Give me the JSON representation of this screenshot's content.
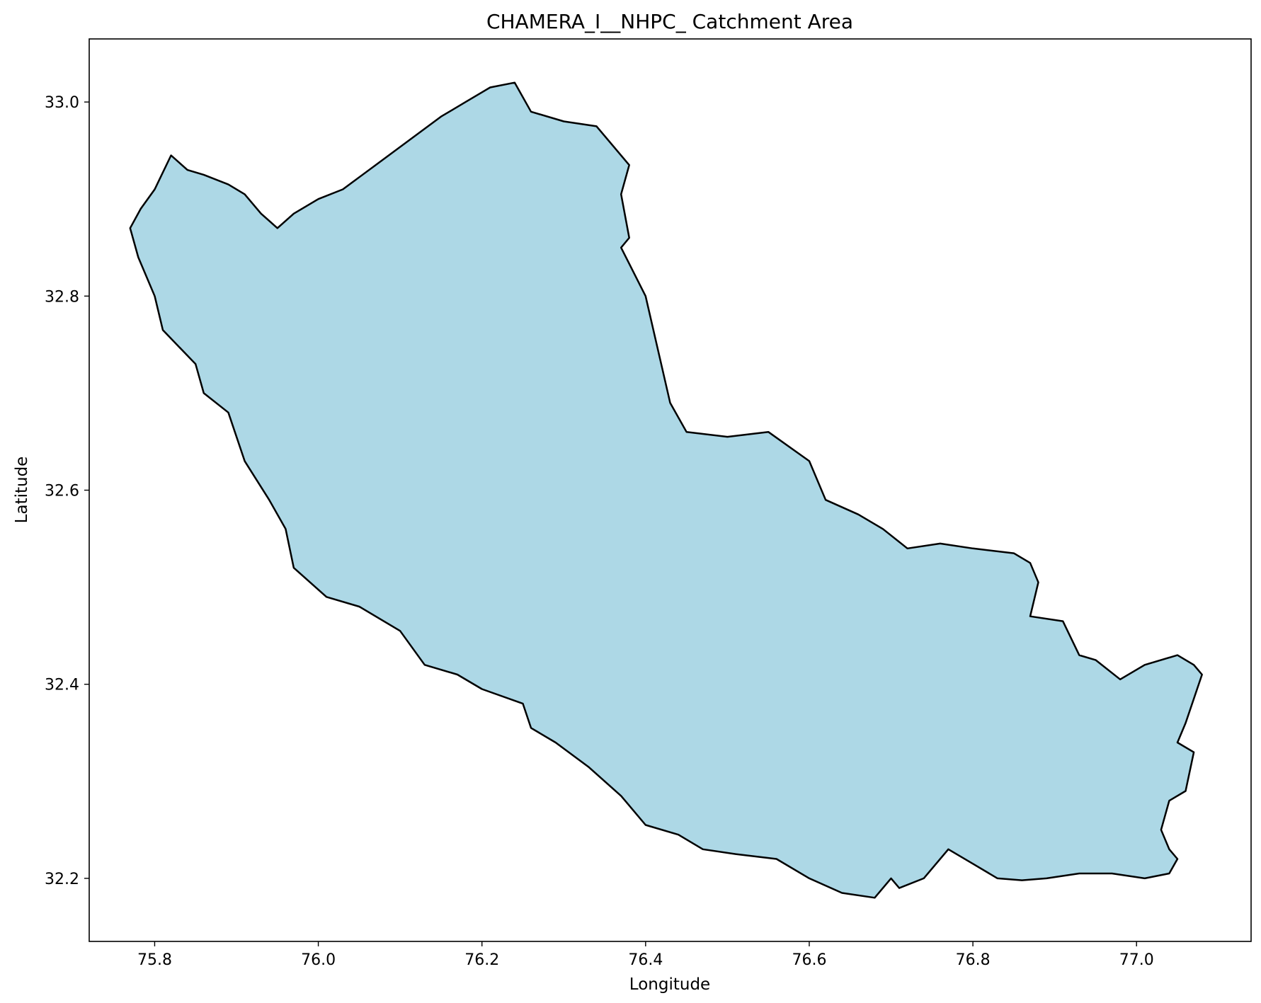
{
  "chart_data": {
    "type": "map",
    "title": "CHAMERA_I__NHPC_ Catchment Area",
    "xlabel": "Longitude",
    "ylabel": "Latitude",
    "xlim": [
      75.72,
      77.14
    ],
    "ylim": [
      32.135,
      33.065
    ],
    "x_ticks": [
      75.8,
      76.0,
      76.2,
      76.4,
      76.6,
      76.8,
      77.0
    ],
    "x_tick_labels": [
      "75.8",
      "76.0",
      "76.2",
      "76.4",
      "76.6",
      "76.8",
      "77.0"
    ],
    "y_ticks": [
      32.2,
      32.4,
      32.6,
      32.8,
      33.0
    ],
    "y_tick_labels": [
      "32.2",
      "32.4",
      "32.6",
      "32.8",
      "33.0"
    ],
    "grid": false,
    "legend": "none",
    "fill_color": "#add8e6",
    "edge_color": "#000000",
    "boundary": [
      [
        75.783,
        32.89
      ],
      [
        75.8,
        32.91
      ],
      [
        75.82,
        32.945
      ],
      [
        75.84,
        32.93
      ],
      [
        75.86,
        32.925
      ],
      [
        75.89,
        32.915
      ],
      [
        75.91,
        32.905
      ],
      [
        75.93,
        32.885
      ],
      [
        75.95,
        32.87
      ],
      [
        75.97,
        32.885
      ],
      [
        76.0,
        32.9
      ],
      [
        76.03,
        32.91
      ],
      [
        76.07,
        32.935
      ],
      [
        76.11,
        32.96
      ],
      [
        76.15,
        32.985
      ],
      [
        76.18,
        33.0
      ],
      [
        76.21,
        33.015
      ],
      [
        76.24,
        33.02
      ],
      [
        76.26,
        32.99
      ],
      [
        76.3,
        32.98
      ],
      [
        76.34,
        32.975
      ],
      [
        76.38,
        32.935
      ],
      [
        76.37,
        32.905
      ],
      [
        76.38,
        32.86
      ],
      [
        76.37,
        32.85
      ],
      [
        76.4,
        32.8
      ],
      [
        76.43,
        32.69
      ],
      [
        76.45,
        32.66
      ],
      [
        76.5,
        32.655
      ],
      [
        76.55,
        32.66
      ],
      [
        76.6,
        32.63
      ],
      [
        76.62,
        32.59
      ],
      [
        76.66,
        32.575
      ],
      [
        76.69,
        32.56
      ],
      [
        76.72,
        32.54
      ],
      [
        76.76,
        32.545
      ],
      [
        76.8,
        32.54
      ],
      [
        76.85,
        32.535
      ],
      [
        76.87,
        32.525
      ],
      [
        76.88,
        32.505
      ],
      [
        76.87,
        32.47
      ],
      [
        76.91,
        32.465
      ],
      [
        76.93,
        32.43
      ],
      [
        76.95,
        32.425
      ],
      [
        76.98,
        32.405
      ],
      [
        77.01,
        32.42
      ],
      [
        77.05,
        32.43
      ],
      [
        77.07,
        32.42
      ],
      [
        77.08,
        32.41
      ],
      [
        77.06,
        32.36
      ],
      [
        77.05,
        32.34
      ],
      [
        77.07,
        32.33
      ],
      [
        77.06,
        32.29
      ],
      [
        77.04,
        32.28
      ],
      [
        77.03,
        32.25
      ],
      [
        77.04,
        32.23
      ],
      [
        77.05,
        32.22
      ],
      [
        77.04,
        32.205
      ],
      [
        77.01,
        32.2
      ],
      [
        76.97,
        32.205
      ],
      [
        76.93,
        32.205
      ],
      [
        76.89,
        32.2
      ],
      [
        76.86,
        32.198
      ],
      [
        76.83,
        32.2
      ],
      [
        76.8,
        32.215
      ],
      [
        76.77,
        32.23
      ],
      [
        76.74,
        32.2
      ],
      [
        76.71,
        32.19
      ],
      [
        76.7,
        32.2
      ],
      [
        76.68,
        32.18
      ],
      [
        76.64,
        32.185
      ],
      [
        76.6,
        32.2
      ],
      [
        76.56,
        32.22
      ],
      [
        76.51,
        32.225
      ],
      [
        76.47,
        32.23
      ],
      [
        76.44,
        32.245
      ],
      [
        76.4,
        32.255
      ],
      [
        76.37,
        32.285
      ],
      [
        76.33,
        32.315
      ],
      [
        76.29,
        32.34
      ],
      [
        76.26,
        32.355
      ],
      [
        76.25,
        32.38
      ],
      [
        76.2,
        32.395
      ],
      [
        76.17,
        32.41
      ],
      [
        76.13,
        32.42
      ],
      [
        76.1,
        32.455
      ],
      [
        76.05,
        32.48
      ],
      [
        76.01,
        32.49
      ],
      [
        75.97,
        32.52
      ],
      [
        75.96,
        32.56
      ],
      [
        75.94,
        32.59
      ],
      [
        75.91,
        32.63
      ],
      [
        75.89,
        32.68
      ],
      [
        75.86,
        32.7
      ],
      [
        75.85,
        32.73
      ],
      [
        75.81,
        32.765
      ],
      [
        75.8,
        32.8
      ],
      [
        75.78,
        32.84
      ],
      [
        75.77,
        32.87
      ],
      [
        75.783,
        32.89
      ]
    ]
  }
}
